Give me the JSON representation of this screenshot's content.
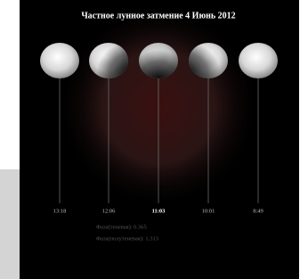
{
  "title": "Частное лунное затмение 4 Июнь 2012",
  "times": [
    "13:18",
    "12:06",
    "11:03",
    "10:01",
    "8:49"
  ],
  "phases": [
    "Фаза(теневая): 0.365",
    "Фаза(полутеневая): 1.313"
  ]
}
